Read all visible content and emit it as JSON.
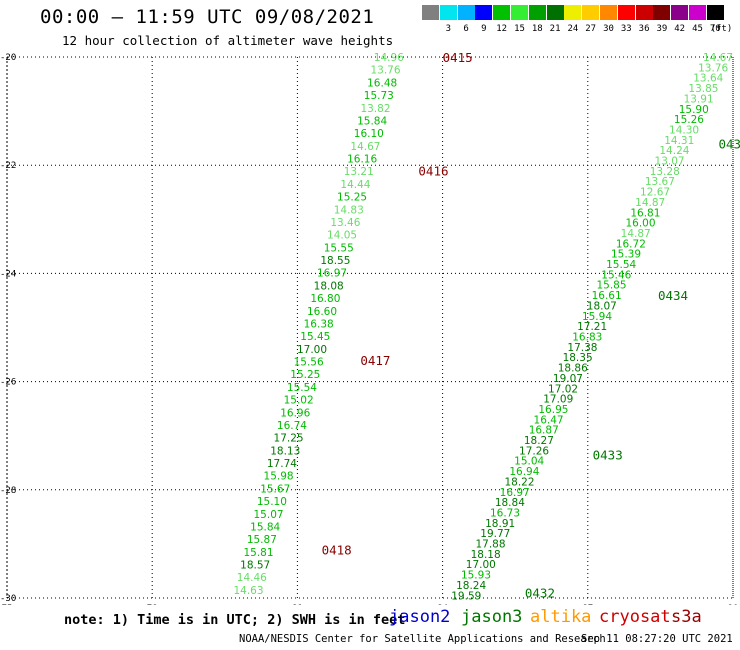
{
  "header": {
    "title": "00:00 – 11:59 UTC 09/08/2021",
    "subtitle": "12 hour collection of altimeter wave heights"
  },
  "scale": {
    "bins": [
      {
        "label": "",
        "color": "#808080"
      },
      {
        "label": "3",
        "color": "#00e5ee"
      },
      {
        "label": "6",
        "color": "#00b2ff"
      },
      {
        "label": "9",
        "color": "#0000ff"
      },
      {
        "label": "12",
        "color": "#00c000"
      },
      {
        "label": "15",
        "color": "#33ee33"
      },
      {
        "label": "18",
        "color": "#00a000"
      },
      {
        "label": "21",
        "color": "#007000"
      },
      {
        "label": "24",
        "color": "#eeee00"
      },
      {
        "label": "27",
        "color": "#ffcc00"
      },
      {
        "label": "30",
        "color": "#ff8800"
      },
      {
        "label": "33",
        "color": "#ff0000"
      },
      {
        "label": "36",
        "color": "#cc0000"
      },
      {
        "label": "39",
        "color": "#800000"
      },
      {
        "label": "42",
        "color": "#8a008a"
      },
      {
        "label": "45",
        "color": "#cc00cc"
      },
      {
        "label": "70",
        "color": "#000000"
      }
    ],
    "unit": "(ft)"
  },
  "map": {
    "lon_range": [
      75,
      90
    ],
    "lat_range": [
      -30,
      -20
    ],
    "lon_ticks": [
      "75",
      "78",
      "81",
      "84",
      "87",
      "90"
    ],
    "lat_ticks": [
      "-20",
      "-22",
      "-24",
      "-26",
      "-28",
      "-30"
    ],
    "grid": true
  },
  "colors": {
    "light": "#66dd66",
    "mid": "#00bb00",
    "dark": "#007700",
    "pass_jason3": "#007700",
    "pass_cryosat": "#880000"
  },
  "tracks": [
    {
      "start": [
        83.2,
        -20.0
      ],
      "end": [
        80.3,
        -29.85
      ],
      "values": [
        "14.96",
        "13.76",
        "16.48",
        "15.73",
        "13.82",
        "15.84",
        "16.10",
        "14.67",
        "16.16",
        "13.21",
        "14.44",
        "15.25",
        "14.83",
        "13.46",
        "14.05",
        "15.55",
        "18.55",
        "16.97",
        "18.08",
        "16.80",
        "16.60",
        "16.38",
        "15.45",
        "17.00",
        "15.56",
        "15.25",
        "15.54",
        "15.02",
        "16.96",
        "16.74",
        "17.25",
        "18.13",
        "17.74",
        "15.98",
        "15.67",
        "15.10",
        "15.07",
        "15.84",
        "15.87",
        "15.81",
        "18.57",
        "14.46",
        "14.63"
      ]
    },
    {
      "start": [
        90.0,
        -20.0
      ],
      "end": [
        84.8,
        -29.95
      ],
      "values": [
        "14.67",
        "13.76",
        "13.64",
        "13.85",
        "13.91",
        "15.90",
        "15.26",
        "14.30",
        "14.31",
        "14.24",
        "13.07",
        "13.28",
        "13.67",
        "12.67",
        "14.87",
        "16.81",
        "16.00",
        "14.87",
        "16.72",
        "15.39",
        "15.54",
        "15.46",
        "15.85",
        "16.61",
        "18.07",
        "15.94",
        "17.21",
        "16.83",
        "17.38",
        "18.35",
        "18.86",
        "19.07",
        "17.02",
        "17.09",
        "16.95",
        "16.47",
        "16.87",
        "18.27",
        "17.26",
        "15.04",
        "16.94",
        "18.22",
        "16.97",
        "18.84",
        "16.73",
        "18.91",
        "19.77",
        "17.88",
        "18.18",
        "17.00",
        "15.93",
        "18.24",
        "19.59"
      ]
    }
  ],
  "passes": [
    {
      "label": "0415",
      "lon": 84.0,
      "lat": -20.0,
      "color": "#880000"
    },
    {
      "label": "0416",
      "lon": 83.5,
      "lat": -22.1,
      "color": "#880000"
    },
    {
      "label": "0417",
      "lon": 82.3,
      "lat": -25.6,
      "color": "#880000"
    },
    {
      "label": "0418",
      "lon": 81.5,
      "lat": -29.1,
      "color": "#880000"
    },
    {
      "label": "0431",
      "lon": 89.7,
      "lat": -21.6,
      "color": "#007700"
    },
    {
      "label": "0434",
      "lon": 88.45,
      "lat": -24.4,
      "color": "#007700"
    },
    {
      "label": "0433",
      "lon": 87.1,
      "lat": -27.35,
      "color": "#007700"
    },
    {
      "label": "0432",
      "lon": 85.7,
      "lat": -29.9,
      "color": "#007700"
    }
  ],
  "note": "note: 1) Time is in UTC; 2) SWH is in feet",
  "satellites": [
    {
      "name": "jason2",
      "color": "#0000cc"
    },
    {
      "name": "jason3",
      "color": "#007700"
    },
    {
      "name": "altika",
      "color": "#ff9900"
    },
    {
      "name": "cryosat",
      "color": "#cc0000"
    },
    {
      "name": "s3a",
      "color": "#990000"
    }
  ],
  "footer": {
    "credit": "NOAA/NESDIS Center for Satellite Applications and Research",
    "timestamp": "Sep 11 08:27:20 UTC 2021"
  }
}
